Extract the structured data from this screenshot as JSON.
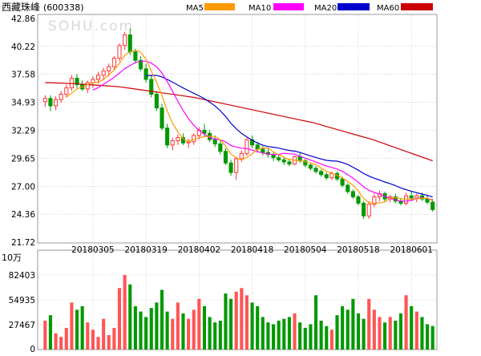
{
  "header": {
    "title": "西藏珠峰",
    "code": "(600338)",
    "watermark": "SOHU.com"
  },
  "legend": [
    {
      "label": "MA5",
      "color": "#ff9900"
    },
    {
      "label": "MA10",
      "color": "#ff00ff"
    },
    {
      "label": "MA20",
      "color": "#0000cc"
    },
    {
      "label": "MA60",
      "color": "#cc0000"
    }
  ],
  "colors": {
    "up": "#ff3333",
    "down": "#009900",
    "grid": "#b4b4b4",
    "axis_text": "#000000"
  },
  "chart_data": [
    {
      "type": "candlestick",
      "name": "price",
      "y_ticks": [
        "42.86",
        "40.22",
        "37.58",
        "34.93",
        "32.29",
        "29.65",
        "27.00",
        "24.36",
        "21.72"
      ],
      "ylim": [
        21.72,
        42.86
      ],
      "x_labels": [
        "20180305",
        "20180319",
        "20180402",
        "20180418",
        "20180504",
        "20180518",
        "20180601"
      ],
      "x_label_index": [
        9,
        19,
        29,
        39,
        49,
        59,
        69
      ],
      "ohlc": [
        [
          35.0,
          35.6,
          34.5,
          35.3
        ],
        [
          35.3,
          35.6,
          34.1,
          34.6
        ],
        [
          34.6,
          35.5,
          34.2,
          35.2
        ],
        [
          35.2,
          36.0,
          34.9,
          35.7
        ],
        [
          35.7,
          36.6,
          35.4,
          36.3
        ],
        [
          36.3,
          37.5,
          36.0,
          37.2
        ],
        [
          37.2,
          37.6,
          36.3,
          36.6
        ],
        [
          36.6,
          37.0,
          36.0,
          36.2
        ],
        [
          36.2,
          37.0,
          35.8,
          36.8
        ],
        [
          36.8,
          37.4,
          36.3,
          37.1
        ],
        [
          37.1,
          37.8,
          36.7,
          37.5
        ],
        [
          37.5,
          38.2,
          37.0,
          37.9
        ],
        [
          37.9,
          38.6,
          37.4,
          38.3
        ],
        [
          38.3,
          39.3,
          38.0,
          39.1
        ],
        [
          39.1,
          40.5,
          38.8,
          40.3
        ],
        [
          40.3,
          41.6,
          39.9,
          41.3
        ],
        [
          41.3,
          41.9,
          39.4,
          39.7
        ],
        [
          39.7,
          40.0,
          38.6,
          38.9
        ],
        [
          38.9,
          39.3,
          37.9,
          38.1
        ],
        [
          38.1,
          38.6,
          36.8,
          37.1
        ],
        [
          37.1,
          37.5,
          35.4,
          35.7
        ],
        [
          35.7,
          36.0,
          34.1,
          34.4
        ],
        [
          34.4,
          34.8,
          32.3,
          32.5
        ],
        [
          32.5,
          32.9,
          30.6,
          30.9
        ],
        [
          30.9,
          31.6,
          30.4,
          31.3
        ],
        [
          31.3,
          31.9,
          30.9,
          31.6
        ],
        [
          31.6,
          32.0,
          30.9,
          31.1
        ],
        [
          31.1,
          31.5,
          30.6,
          31.2
        ],
        [
          31.2,
          32.0,
          30.9,
          31.8
        ],
        [
          31.8,
          32.6,
          31.4,
          32.3
        ],
        [
          32.3,
          32.9,
          31.7,
          32.0
        ],
        [
          32.0,
          32.3,
          31.2,
          31.4
        ],
        [
          31.4,
          31.8,
          30.7,
          31.0
        ],
        [
          31.0,
          31.4,
          30.0,
          30.3
        ],
        [
          30.3,
          30.6,
          29.0,
          29.2
        ],
        [
          29.2,
          29.5,
          28.0,
          28.3
        ],
        [
          28.3,
          29.8,
          27.6,
          29.6
        ],
        [
          29.6,
          30.4,
          29.3,
          30.1
        ],
        [
          30.1,
          31.6,
          29.9,
          31.4
        ],
        [
          31.4,
          31.8,
          30.6,
          30.9
        ],
        [
          30.9,
          31.2,
          30.2,
          30.5
        ],
        [
          30.5,
          30.8,
          29.9,
          30.2
        ],
        [
          30.2,
          30.6,
          29.7,
          30.0
        ],
        [
          30.0,
          30.3,
          29.4,
          29.7
        ],
        [
          29.7,
          30.0,
          29.3,
          29.5
        ],
        [
          29.5,
          29.8,
          29.0,
          29.3
        ],
        [
          29.3,
          29.6,
          28.9,
          29.1
        ],
        [
          29.1,
          29.9,
          29.0,
          29.8
        ],
        [
          29.8,
          30.2,
          29.2,
          29.4
        ],
        [
          29.4,
          29.6,
          28.8,
          29.0
        ],
        [
          29.0,
          29.2,
          28.5,
          28.7
        ],
        [
          28.7,
          28.9,
          28.2,
          28.4
        ],
        [
          28.4,
          28.6,
          27.9,
          28.1
        ],
        [
          28.1,
          28.3,
          27.6,
          27.8
        ],
        [
          27.8,
          28.4,
          27.6,
          28.2
        ],
        [
          28.2,
          28.4,
          27.5,
          27.7
        ],
        [
          27.7,
          27.9,
          26.9,
          27.1
        ],
        [
          27.1,
          27.3,
          26.3,
          26.5
        ],
        [
          26.5,
          26.7,
          25.8,
          26.0
        ],
        [
          26.0,
          26.2,
          25.2,
          25.4
        ],
        [
          25.4,
          25.6,
          23.9,
          24.2
        ],
        [
          24.2,
          25.6,
          23.9,
          25.3
        ],
        [
          25.3,
          26.3,
          25.0,
          26.0
        ],
        [
          26.0,
          26.6,
          25.6,
          26.3
        ],
        [
          26.3,
          26.5,
          25.5,
          25.8
        ],
        [
          25.8,
          26.2,
          25.5,
          26.0
        ],
        [
          26.0,
          26.3,
          25.4,
          25.6
        ],
        [
          25.6,
          25.9,
          25.2,
          25.4
        ],
        [
          25.4,
          26.4,
          25.2,
          26.1
        ],
        [
          26.1,
          26.5,
          25.6,
          25.9
        ],
        [
          25.9,
          26.3,
          25.5,
          26.1
        ],
        [
          26.1,
          26.4,
          25.6,
          25.8
        ],
        [
          25.8,
          26.1,
          25.3,
          25.5
        ],
        [
          25.5,
          25.8,
          24.6,
          24.8
        ]
      ],
      "ma": {
        "MA5": [],
        "MA10": [],
        "MA20": [],
        "MA60": [
          36.8,
          36.75,
          36.7,
          36.6,
          36.5,
          36.4,
          36.2,
          36.0,
          35.8,
          35.6,
          35.4,
          35.1,
          34.8,
          34.5,
          34.2,
          33.9,
          33.6,
          33.3,
          33.0,
          32.6,
          32.2,
          31.8,
          31.4,
          30.9,
          30.4,
          29.9,
          29.4
        ]
      },
      "ma60_start_index": 47
    },
    {
      "type": "bar",
      "name": "volume",
      "unit": "10万",
      "y_ticks": [
        "82403",
        "54935",
        "27467",
        "0"
      ],
      "ylim": [
        0,
        109871
      ],
      "values": [
        32000,
        38000,
        18000,
        14000,
        24000,
        52000,
        44000,
        48000,
        30000,
        22000,
        14000,
        34000,
        16000,
        24000,
        68000,
        82403,
        72000,
        48000,
        42000,
        36000,
        46000,
        52000,
        66000,
        42000,
        34000,
        52000,
        40000,
        34000,
        44000,
        56000,
        48000,
        36000,
        30000,
        32000,
        62000,
        56000,
        64000,
        68000,
        60000,
        52000,
        48000,
        36000,
        30000,
        28000,
        32000,
        34000,
        36000,
        40000,
        30000,
        24000,
        28000,
        60000,
        32000,
        26000,
        22000,
        38000,
        48000,
        44000,
        56000,
        40000,
        34000,
        56000,
        44000,
        36000,
        30000,
        36000,
        32000,
        40000,
        60000,
        48000,
        42000,
        36000,
        28000,
        26000
      ],
      "up": [
        1,
        0,
        1,
        1,
        1,
        1,
        0,
        0,
        1,
        1,
        1,
        1,
        1,
        1,
        1,
        1,
        0,
        0,
        0,
        0,
        0,
        0,
        0,
        0,
        1,
        1,
        0,
        1,
        1,
        1,
        0,
        0,
        0,
        0,
        0,
        0,
        1,
        1,
        1,
        0,
        0,
        0,
        0,
        0,
        0,
        0,
        0,
        1,
        0,
        0,
        0,
        0,
        0,
        0,
        1,
        0,
        0,
        0,
        0,
        0,
        0,
        1,
        1,
        1,
        0,
        1,
        0,
        0,
        1,
        0,
        1,
        0,
        0,
        0
      ]
    }
  ]
}
